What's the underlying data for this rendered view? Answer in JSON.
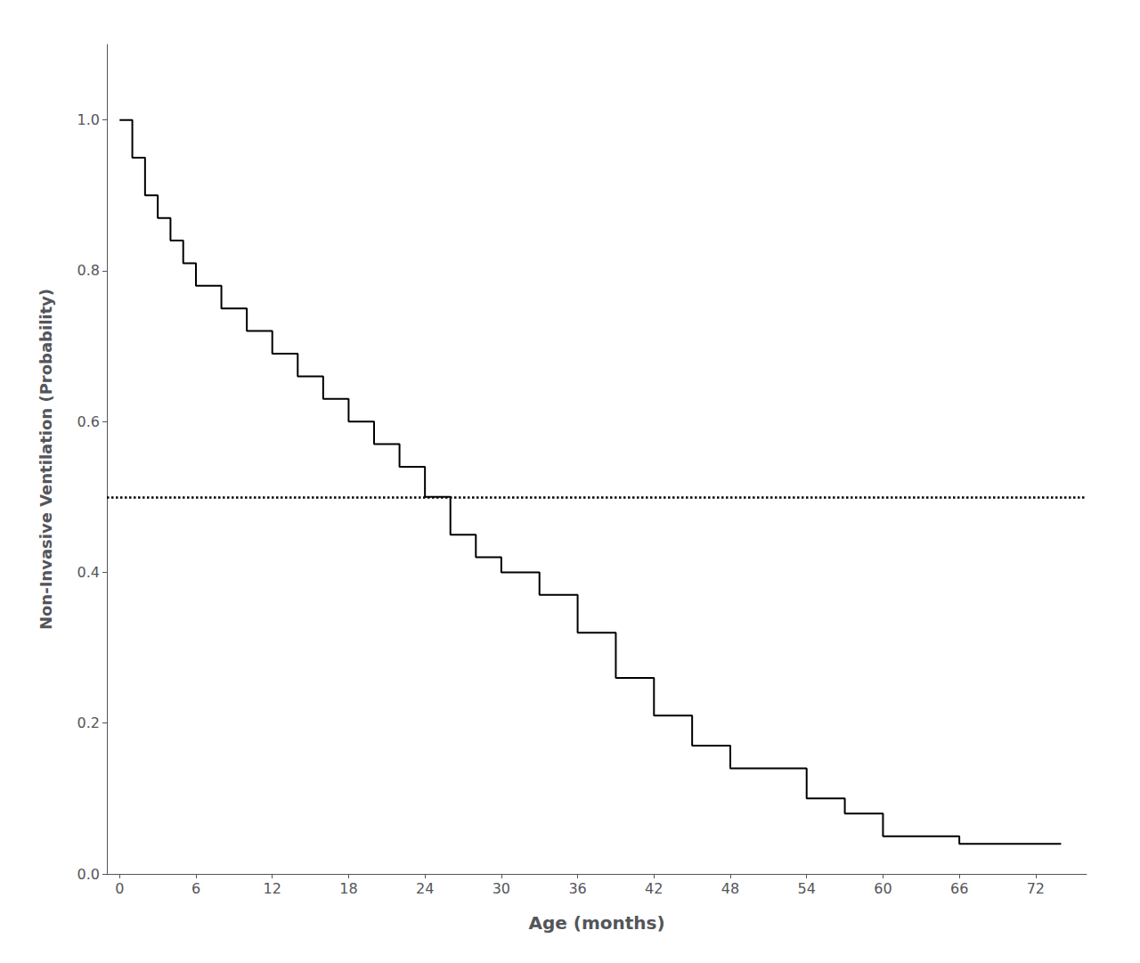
{
  "chart_data": {
    "type": "line",
    "line_style": "step",
    "xlabel": "Age (months)",
    "ylabel": "Non-Invasive Ventilation (Probability)",
    "x": [
      0,
      1,
      2,
      3,
      4,
      5,
      6,
      8,
      10,
      12,
      14,
      16,
      18,
      20,
      22,
      24,
      26,
      28,
      30,
      33,
      36,
      39,
      42,
      45,
      48,
      54,
      57,
      60,
      66,
      69,
      74
    ],
    "values": [
      1.0,
      0.95,
      0.9,
      0.87,
      0.84,
      0.81,
      0.78,
      0.75,
      0.72,
      0.69,
      0.66,
      0.63,
      0.6,
      0.57,
      0.54,
      0.5,
      0.45,
      0.42,
      0.4,
      0.37,
      0.32,
      0.26,
      0.21,
      0.17,
      0.14,
      0.1,
      0.08,
      0.05,
      0.04,
      0.04,
      0.04
    ],
    "color": "#000000",
    "reference_lines": [
      {
        "y": 0.5,
        "line_style": "dotted",
        "color": "#000000"
      }
    ],
    "xlim": [
      -1,
      76
    ],
    "ylim": [
      0,
      1.1
    ],
    "xticks": [
      0,
      6,
      12,
      18,
      24,
      30,
      36,
      42,
      48,
      54,
      60,
      66,
      72
    ],
    "yticks": [
      {
        "value": 0,
        "label": "0.0"
      },
      0.2,
      0.4,
      0.6,
      0.8,
      {
        "value": 1,
        "label": "1.0"
      }
    ],
    "grid": false
  }
}
